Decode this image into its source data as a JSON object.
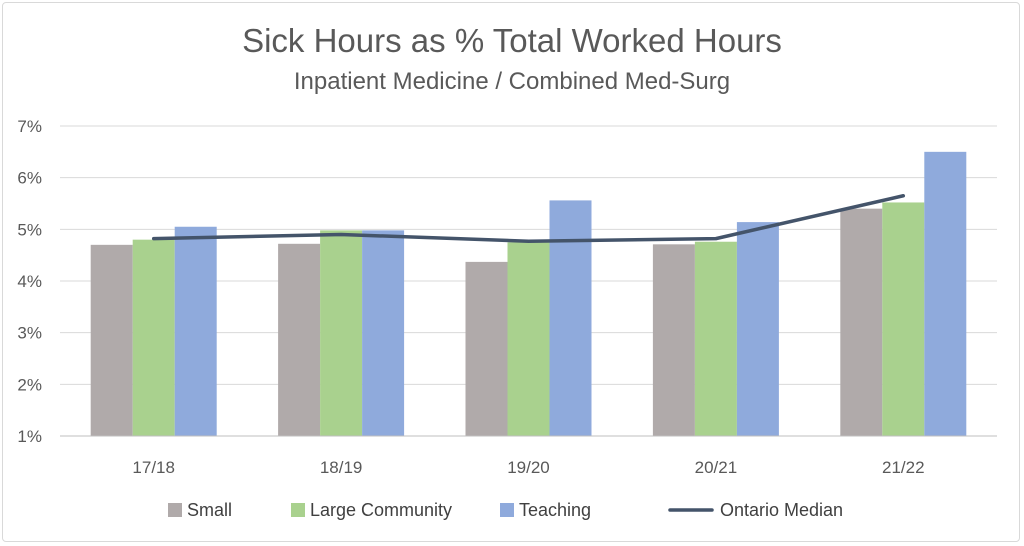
{
  "chart_data": {
    "type": "bar",
    "title": "Sick Hours as % Total Worked Hours",
    "subtitle": "Inpatient Medicine / Combined Med-Surg",
    "categories": [
      "17/18",
      "18/19",
      "19/20",
      "20/21",
      "21/22"
    ],
    "series": [
      {
        "name": "Small",
        "type": "bar",
        "color": "#b0aaaa",
        "values": [
          4.7,
          4.72,
          4.37,
          4.71,
          5.4
        ]
      },
      {
        "name": "Large Community",
        "type": "bar",
        "color": "#a9d18e",
        "values": [
          4.8,
          4.98,
          4.75,
          4.76,
          5.52
        ]
      },
      {
        "name": "Teaching",
        "type": "bar",
        "color": "#8faadc",
        "values": [
          5.05,
          4.98,
          5.56,
          5.14,
          6.5
        ]
      },
      {
        "name": "Ontario Median",
        "type": "line",
        "color": "#44546a",
        "values": [
          4.82,
          4.9,
          4.77,
          4.82,
          5.65
        ]
      }
    ],
    "ylim": [
      1,
      7
    ],
    "yticks": [
      "1%",
      "2%",
      "3%",
      "4%",
      "5%",
      "6%",
      "7%"
    ],
    "grid": true,
    "legend": "bottom"
  }
}
